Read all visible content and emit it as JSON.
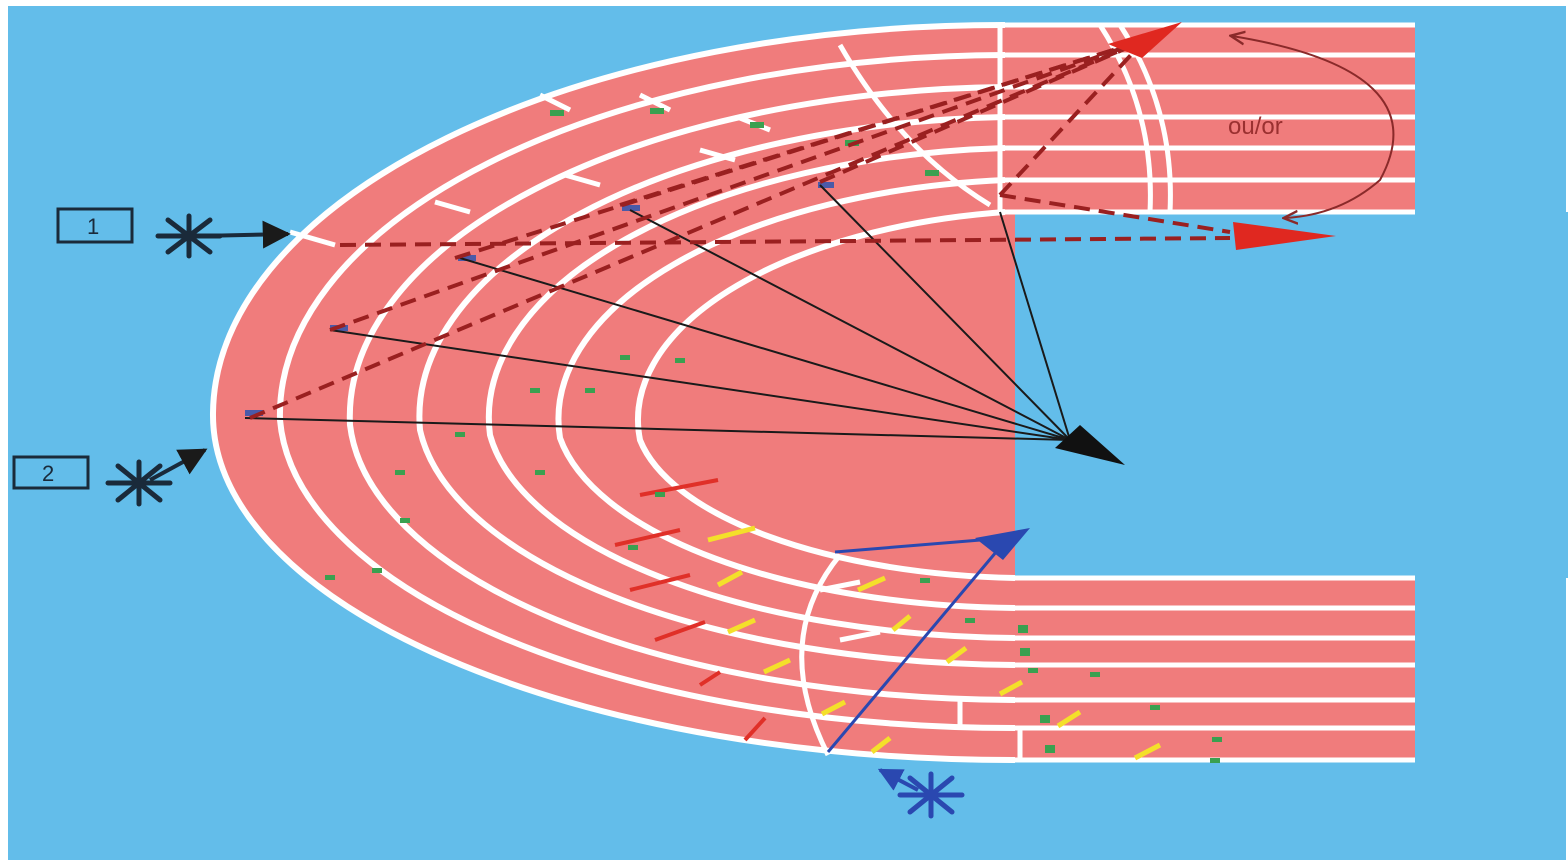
{
  "diagram": {
    "marker_1": "1",
    "marker_2": "2",
    "alternative_note": "ou/or"
  },
  "colors": {
    "background": "#63bdea",
    "track": "#f07c7c",
    "lane_line": "#ffffff",
    "start_line_red": "#e03028",
    "start_line_yellow": "#f4e02a",
    "start_mark_green": "#3aa050",
    "start_mark_blue": "#4a5aa8",
    "arrow_dark": "#1a1a1a",
    "arrow_red": "#e02820",
    "arrow_blue": "#2a48b0",
    "curve_note": "#8a2a2a"
  },
  "icons": [
    "starter-asterisk-icon",
    "finish-arrow-icon",
    "curved-double-arrow-icon"
  ]
}
